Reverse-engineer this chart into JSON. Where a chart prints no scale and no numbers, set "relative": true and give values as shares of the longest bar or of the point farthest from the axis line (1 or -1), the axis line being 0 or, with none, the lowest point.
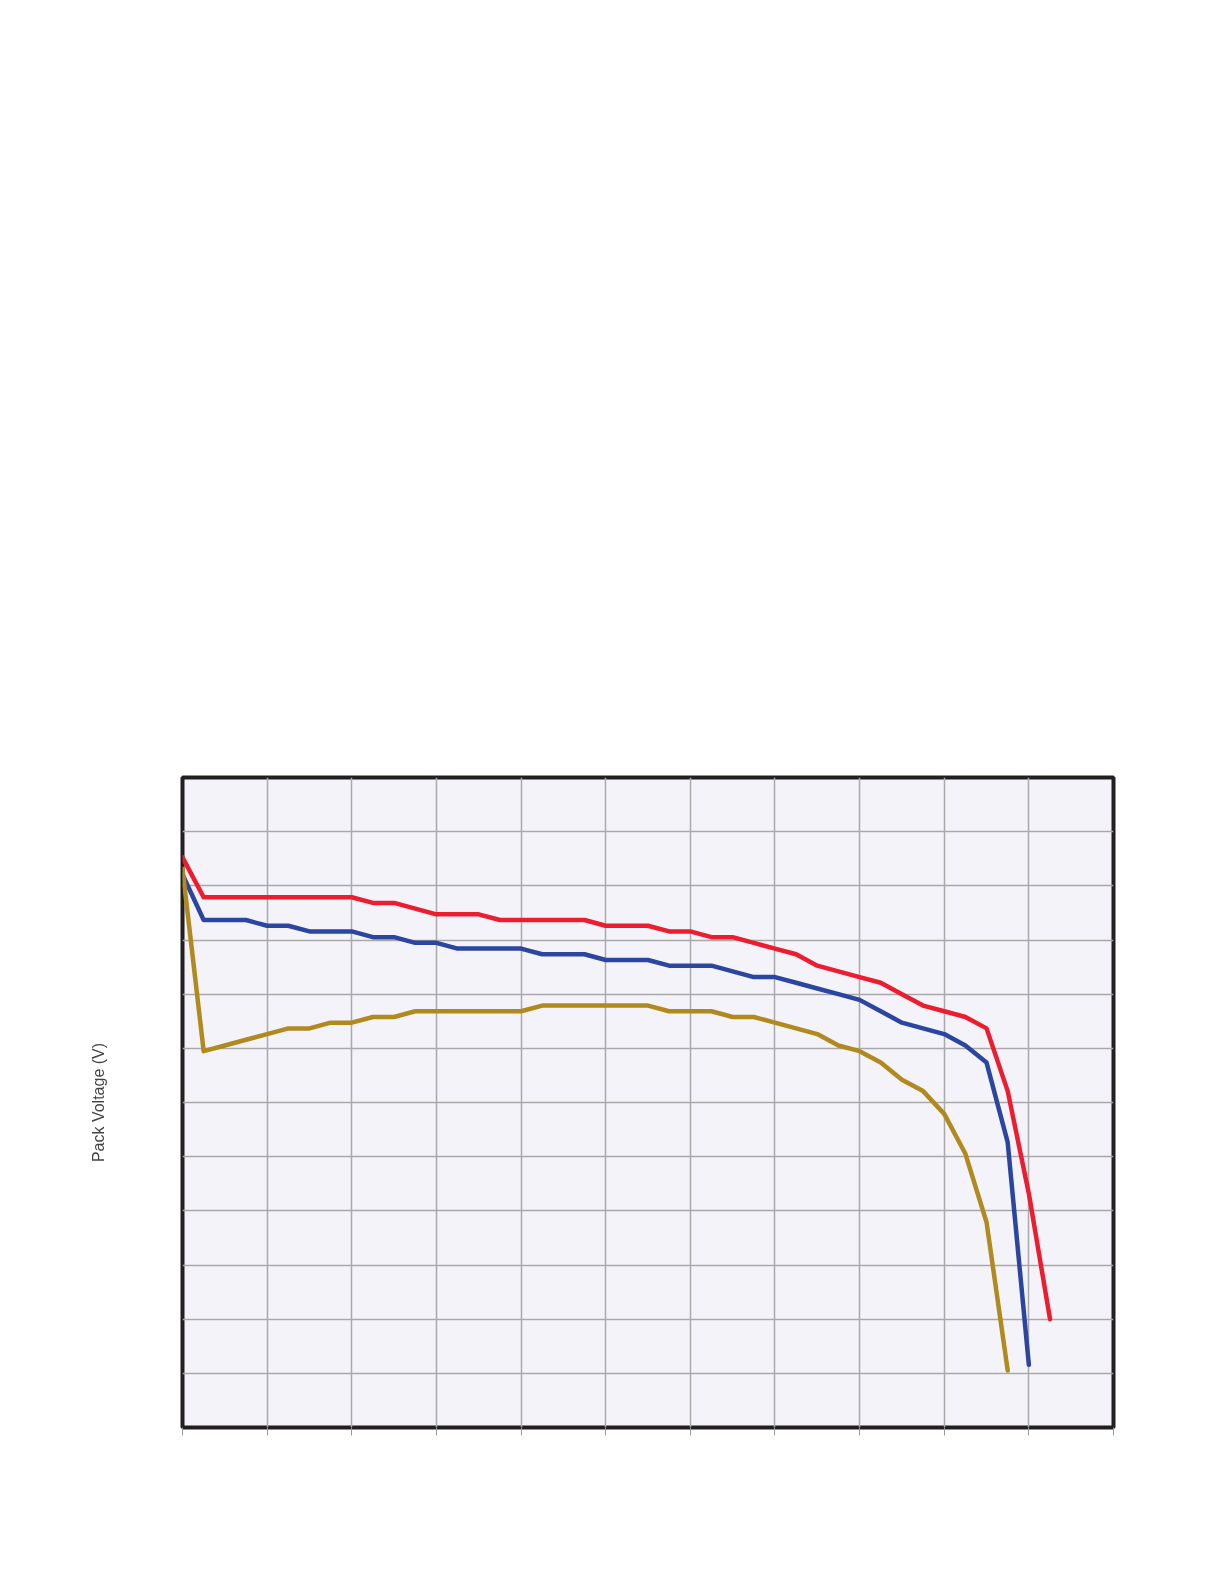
{
  "chart_data": {
    "type": "line",
    "ylabel": "Pack Voltage (V)",
    "relative": true,
    "grid": true,
    "line_style": "solid",
    "marker": "none",
    "categories": [
      null,
      null,
      null,
      null,
      null,
      null,
      null,
      null,
      null,
      null,
      null,
      null,
      null,
      null,
      null,
      null,
      null,
      null,
      null,
      null,
      null,
      null,
      null,
      null,
      null,
      null,
      null,
      null,
      null,
      null,
      null,
      null,
      null,
      null,
      null,
      null,
      null,
      null,
      null,
      null,
      null,
      null,
      null,
      null,
      null
    ],
    "series": [
      {
        "color": "#ed1c2e",
        "values": [
          1.0,
          0.93,
          0.93,
          0.93,
          0.93,
          0.93,
          0.93,
          0.93,
          0.93,
          0.92,
          0.92,
          0.91,
          0.9,
          0.9,
          0.9,
          0.89,
          0.89,
          0.89,
          0.89,
          0.89,
          0.88,
          0.88,
          0.88,
          0.87,
          0.87,
          0.86,
          0.86,
          0.85,
          0.84,
          0.83,
          0.81,
          0.8,
          0.79,
          0.78,
          0.76,
          0.74,
          0.73,
          0.72,
          0.7,
          0.59,
          0.41,
          0.19,
          null,
          null,
          null
        ]
      },
      {
        "color": "#2a46a0",
        "values": [
          0.97,
          0.89,
          0.89,
          0.89,
          0.88,
          0.88,
          0.87,
          0.87,
          0.87,
          0.86,
          0.86,
          0.85,
          0.85,
          0.84,
          0.84,
          0.84,
          0.84,
          0.83,
          0.83,
          0.83,
          0.82,
          0.82,
          0.82,
          0.81,
          0.81,
          0.81,
          0.8,
          0.79,
          0.79,
          0.78,
          0.77,
          0.76,
          0.75,
          0.73,
          0.71,
          0.7,
          0.69,
          0.67,
          0.64,
          0.5,
          0.11,
          null,
          null,
          null,
          null
        ]
      },
      {
        "color": "#b08a1f",
        "values": [
          0.98,
          0.66,
          0.67,
          0.68,
          0.69,
          0.7,
          0.7,
          0.71,
          0.71,
          0.72,
          0.72,
          0.73,
          0.73,
          0.73,
          0.73,
          0.73,
          0.73,
          0.74,
          0.74,
          0.74,
          0.74,
          0.74,
          0.74,
          0.73,
          0.73,
          0.73,
          0.72,
          0.72,
          0.71,
          0.7,
          0.69,
          0.67,
          0.66,
          0.64,
          0.61,
          0.59,
          0.55,
          0.48,
          0.36,
          0.1,
          null,
          null,
          null,
          null,
          null
        ]
      }
    ]
  }
}
